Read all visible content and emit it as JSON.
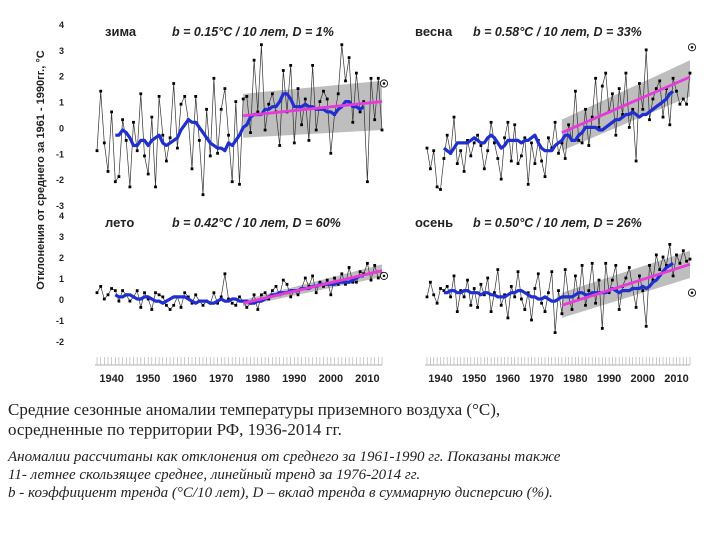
{
  "chart_data": {
    "type": "line",
    "y_axis_title": "Отклонения от среднего за 1961 - 1990гг., °С",
    "x_ticks": [
      1940,
      1950,
      1960,
      1970,
      1980,
      1990,
      2000,
      2010
    ],
    "panels": [
      {
        "season": "зима",
        "b_label": "b = 0.15°C / 10 лет, D = 1%",
        "ylim": [
          -3,
          4
        ],
        "yticks": [
          4,
          3,
          2,
          1,
          0,
          -1,
          -2,
          -3
        ],
        "anomaly": [
          -0.9,
          1.4,
          -0.6,
          -1.7,
          0.6,
          -2.1,
          -1.9,
          0.3,
          -0.5,
          -2.3,
          0.2,
          -0.9,
          1.3,
          -1.1,
          -1.8,
          0.4,
          -2.3,
          1.2,
          -0.3,
          -1.3,
          -0.4,
          1.7,
          -0.8,
          0.9,
          1.2,
          0.3,
          -1.6,
          1.2,
          -0.5,
          -2.6,
          0.7,
          -1.1,
          1.9,
          -1.0,
          0.7,
          1.5,
          -0.3,
          -2.1,
          1.0,
          -2.2,
          1.1,
          1.2,
          -0.2,
          2.6,
          0.6,
          3.2,
          -0.1,
          0.9,
          1.3,
          0.6,
          -0.7,
          2.2,
          0.6,
          2.4,
          -0.6,
          1.5,
          0.1,
          1.1,
          -0.5,
          2.4,
          -0.1,
          1.0,
          1.4,
          1.1,
          -1.0,
          0.5,
          1.3,
          3.2,
          1.8,
          2.7,
          0.2,
          2.1,
          0.6,
          1.0,
          -2.1,
          1.9,
          0.3,
          1.9,
          -0.1
        ],
        "smooth": [
          -0.3,
          -0.3,
          -0.1,
          -0.2,
          -0.4,
          -0.7,
          -0.7,
          -0.5,
          -0.5,
          -0.7,
          -0.5,
          -0.4,
          -0.3,
          -0.6,
          -0.7,
          -0.6,
          -0.5,
          -0.4,
          -0.1,
          0.1,
          0.3,
          0.2,
          0.2,
          0.0,
          -0.2,
          -0.4,
          -0.6,
          -0.7,
          -0.8,
          -0.8,
          -0.9,
          -0.6,
          -0.7,
          -0.5,
          -0.3,
          0.0,
          0.1,
          0.4,
          0.5,
          0.5,
          0.5,
          0.7,
          0.7,
          0.8,
          0.8,
          1.0,
          1.3,
          1.3,
          1.1,
          0.8,
          0.8,
          0.8,
          0.9,
          0.8,
          0.8,
          0.7,
          0.7,
          0.7,
          0.6,
          0.6,
          0.5,
          0.7,
          0.8,
          1.0,
          1.0,
          0.8,
          0.8,
          0.7,
          0.8
        ],
        "trend": [
          0.45,
          1.0
        ],
        "band_start": [
          -0.4,
          1.3
        ],
        "band_end": [
          -0.1,
          1.8
        ],
        "dot_y": 1.7
      },
      {
        "season": "весна",
        "b_label": "b = 0.58°C / 10 лет, D = 33%",
        "ylim": [
          -3,
          4
        ],
        "yticks": [
          4,
          3,
          2,
          1,
          0,
          -1,
          -2,
          -3
        ],
        "anomaly": [
          -0.8,
          -1.6,
          -0.9,
          -2.3,
          -2.4,
          -1.2,
          -0.3,
          -1.0,
          0.4,
          -1.4,
          -0.9,
          -1.7,
          -0.5,
          -1.1,
          -0.6,
          -0.3,
          -0.7,
          -1.6,
          -0.9,
          0.2,
          -0.6,
          -1.2,
          -2.0,
          -0.4,
          0.2,
          -1.3,
          0.1,
          -1.4,
          -1.1,
          -0.4,
          -2.2,
          -0.6,
          -1.4,
          -0.5,
          -1.3,
          -1.9,
          -0.4,
          -0.8,
          0.2,
          -1.0,
          -0.6,
          -1.2,
          0.1,
          -0.5,
          1.4,
          -0.5,
          -0.6,
          0.7,
          -0.7,
          0.4,
          1.9,
          0.0,
          1.6,
          2.1,
          0.6,
          1.3,
          -0.3,
          1.5,
          0.5,
          2.1,
          0.0,
          0.7,
          -1.3,
          1.7,
          0.7,
          3.0,
          0.3,
          1.1,
          1.5,
          1.8,
          0.4,
          1.5,
          0.1,
          1.9,
          1.4,
          0.9,
          1.1,
          0.9,
          2.1
        ],
        "smooth": [
          -0.8,
          -0.9,
          -1.0,
          -0.8,
          -0.6,
          -0.6,
          -0.6,
          -0.6,
          -0.5,
          -0.4,
          -0.5,
          -0.6,
          -0.6,
          -0.4,
          -0.3,
          -0.4,
          -0.6,
          -0.8,
          -0.7,
          -0.5,
          -0.5,
          -0.5,
          -0.5,
          -0.6,
          -0.5,
          -0.5,
          -0.4,
          -0.3,
          -0.6,
          -0.8,
          -0.9,
          -0.9,
          -0.9,
          -0.7,
          -0.6,
          -0.5,
          -0.3,
          -0.3,
          -0.5,
          -0.5,
          -0.3,
          -0.2,
          0.0,
          0.0,
          0.0,
          0.0,
          -0.1,
          -0.1,
          0.0,
          0.1,
          0.2,
          0.3,
          0.3,
          0.4,
          0.5,
          0.5,
          0.6,
          0.5,
          0.4,
          0.5,
          0.5,
          0.6,
          0.7,
          0.8,
          0.9,
          1.0,
          1.1,
          1.3,
          1.4
        ],
        "trend": [
          -0.2,
          1.95
        ],
        "band_start": [
          -0.9,
          0.3
        ],
        "band_end": [
          1.2,
          2.6
        ],
        "dot_y": 3.1
      },
      {
        "season": "лето",
        "b_label": "b = 0.42°C / 10 лет, D = 60%",
        "ylim": [
          -2,
          4
        ],
        "yticks": [
          4,
          3,
          2,
          1,
          0,
          -1,
          -2
        ],
        "anomaly": [
          0.3,
          0.6,
          0.0,
          0.2,
          0.5,
          0.4,
          -0.1,
          0.4,
          0.2,
          -0.1,
          0.1,
          0.4,
          -0.4,
          0.3,
          0.0,
          -0.5,
          0.3,
          0.2,
          0.1,
          -0.3,
          -0.5,
          -0.3,
          0.1,
          -0.4,
          0.3,
          0.1,
          -0.2,
          0.2,
          -0.1,
          -0.3,
          -0.1,
          -0.2,
          0.3,
          -0.2,
          0.1,
          1.2,
          0.0,
          -0.2,
          -0.3,
          0.1,
          -0.1,
          -0.4,
          -0.2,
          0.2,
          -0.5,
          0.2,
          0.3,
          0.0,
          0.4,
          0.6,
          0.2,
          0.9,
          0.7,
          0.1,
          0.4,
          0.2,
          0.5,
          1.0,
          0.6,
          1.1,
          0.3,
          0.8,
          0.6,
          0.9,
          0.2,
          1.0,
          0.7,
          1.2,
          0.7,
          1.5,
          0.8,
          0.8,
          1.3,
          1.2,
          1.7,
          0.9,
          1.6,
          1.0,
          1.2
        ],
        "smooth": [
          0.2,
          0.1,
          0.1,
          0.2,
          0.2,
          0.1,
          0.0,
          0.0,
          0.1,
          0.1,
          0.0,
          -0.1,
          -0.1,
          -0.2,
          -0.1,
          0.0,
          0.1,
          0.1,
          0.1,
          0.1,
          0.0,
          -0.1,
          -0.2,
          -0.1,
          -0.1,
          -0.1,
          -0.2,
          -0.2,
          -0.1,
          0.0,
          -0.1,
          -0.1,
          0.0,
          0.0,
          -0.1,
          -0.1,
          -0.1,
          -0.2,
          -0.2,
          -0.1,
          -0.1,
          0.0,
          0.1,
          0.2,
          0.2,
          0.3,
          0.3,
          0.3,
          0.4,
          0.4,
          0.4,
          0.5,
          0.5,
          0.5,
          0.6,
          0.6,
          0.7,
          0.7,
          0.7,
          0.7,
          0.7,
          0.8,
          0.8,
          0.8,
          0.8,
          0.9,
          1.0,
          1.1,
          1.1
        ],
        "trend": [
          -0.2,
          1.35
        ],
        "band_start": [
          -0.35,
          -0.05
        ],
        "band_end": [
          1.05,
          1.65
        ],
        "dot_y": 1.1
      },
      {
        "season": "осень",
        "b_label": "b = 0.50°C / 10 лет, D = 26%",
        "ylim": [
          -2,
          4
        ],
        "yticks": [
          4,
          3,
          2,
          1,
          0,
          -1,
          -2
        ],
        "anomaly": [
          0.1,
          0.8,
          0.2,
          -0.2,
          0.5,
          0.4,
          0.6,
          0.1,
          1.1,
          -0.6,
          0.4,
          0.1,
          0.9,
          -0.3,
          0.5,
          -0.4,
          0.7,
          0.2,
          1.0,
          -0.6,
          0.3,
          1.4,
          -0.3,
          0.2,
          -0.9,
          0.6,
          0.1,
          1.3,
          0.0,
          -0.5,
          0.3,
          -1.0,
          0.5,
          1.2,
          -0.2,
          -0.6,
          0.3,
          1.3,
          -1.6,
          0.4,
          -0.7,
          1.4,
          0.1,
          -0.5,
          1.1,
          0.0,
          1.6,
          -0.3,
          0.4,
          1.7,
          -0.2,
          0.9,
          -1.4,
          1.7,
          0.3,
          0.9,
          1.6,
          -0.5,
          0.6,
          1.0,
          1.5,
          0.5,
          -0.4,
          1.1,
          0.4,
          -1.3,
          1.6,
          0.9,
          2.1,
          1.4,
          2.0,
          1.6,
          2.6,
          1.1,
          2.1,
          1.7,
          2.3,
          1.8,
          1.9
        ],
        "smooth": [
          0.3,
          0.3,
          0.4,
          0.4,
          0.3,
          0.3,
          0.4,
          0.4,
          0.3,
          0.3,
          0.3,
          0.2,
          0.3,
          0.3,
          0.2,
          0.2,
          0.1,
          0.1,
          0.1,
          0.2,
          0.3,
          0.3,
          0.4,
          0.4,
          0.3,
          0.2,
          0.1,
          0.1,
          0.0,
          0.0,
          0.1,
          0.0,
          -0.1,
          -0.1,
          0.0,
          0.1,
          0.1,
          0.1,
          0.1,
          0.2,
          0.3,
          0.3,
          0.2,
          0.2,
          0.3,
          0.3,
          0.3,
          0.3,
          0.3,
          0.4,
          0.5,
          0.4,
          0.3,
          0.4,
          0.4,
          0.4,
          0.5,
          0.5,
          0.5,
          0.6,
          0.5,
          0.6,
          0.8,
          0.9,
          1.1,
          1.3,
          1.5,
          1.6,
          1.7
        ],
        "trend": [
          -0.3,
          1.65
        ],
        "band_start": [
          -0.9,
          0.3
        ],
        "band_end": [
          1.0,
          2.3
        ],
        "dot_y": 0.3
      }
    ]
  },
  "captions": {
    "line1": "Средние сезонные  аномалии  температуры приземного воздуха (°С),",
    "line2": "осредненные по территории РФ, 1936-2014 гг.",
    "line3": "Аномалии рассчитаны как отклонения от среднего за 1961-1990 гг. Показаны также",
    "line4": "11-  летнее скользящее  среднее,  линейный  тренд  за  1976-2014  гг.",
    "line5": "b - коэффициент тренда (°С/10 лет), D – вклад тренда в суммарную дисперсию (%)."
  },
  "colors": {
    "anomaly": "#333333",
    "smooth": "#1f2fd0",
    "trend": "#e63bd8",
    "band": "#b3b3b3",
    "text": "#222222"
  }
}
